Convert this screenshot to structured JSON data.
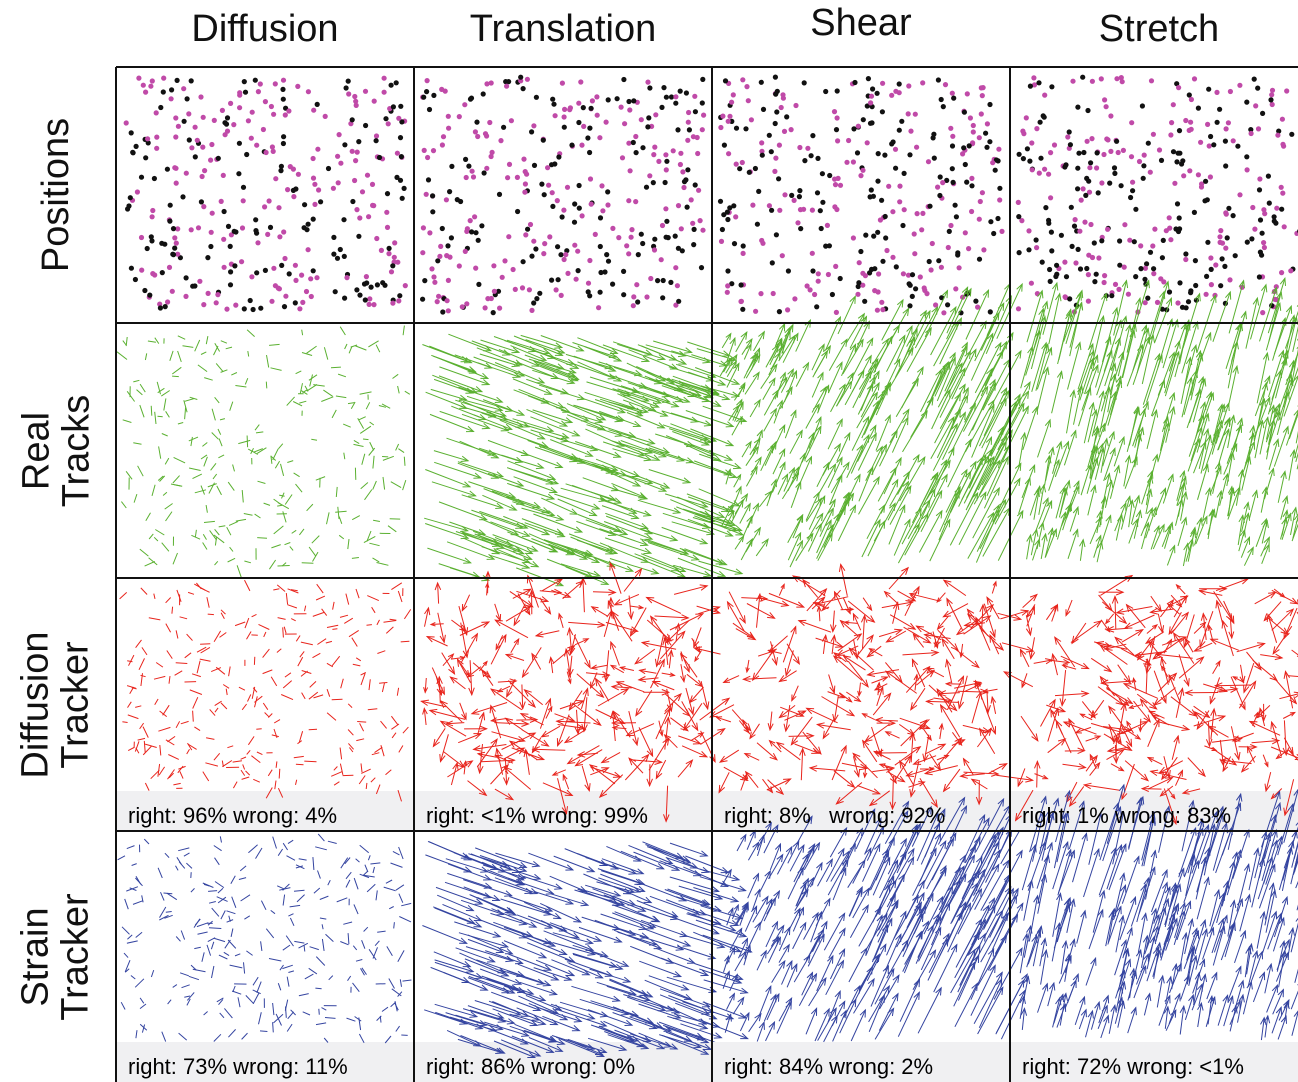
{
  "columns": [
    "Diffusion",
    "Translation",
    "Shear",
    "Stretch"
  ],
  "rows": [
    {
      "label": "Positions"
    },
    {
      "label": "Real\nTracks"
    },
    {
      "label": "Diffusion\nTracker"
    },
    {
      "label": "Strain\nTracker"
    }
  ],
  "colors": {
    "positions_a": "#c04aa8",
    "positions_b": "#111111",
    "real_tracks": "#5ab030",
    "diffusion_tracker": "#e8241c",
    "strain_tracker": "#3444a0",
    "stats_band": "#f0f0f2"
  },
  "diffusion_tracker_stats": [
    "right: 96%  wrong: 4%",
    "right: <1%  wrong: 99%",
    "right: 8%   wrong: 92%",
    "right: 1%   wrong: 83%"
  ],
  "strain_tracker_stats": [
    "right: 73%  wrong: 11%",
    "right: 86%  wrong: 0%",
    "right: 84%  wrong: 2%",
    "right: 72%  wrong: <1%"
  ]
}
